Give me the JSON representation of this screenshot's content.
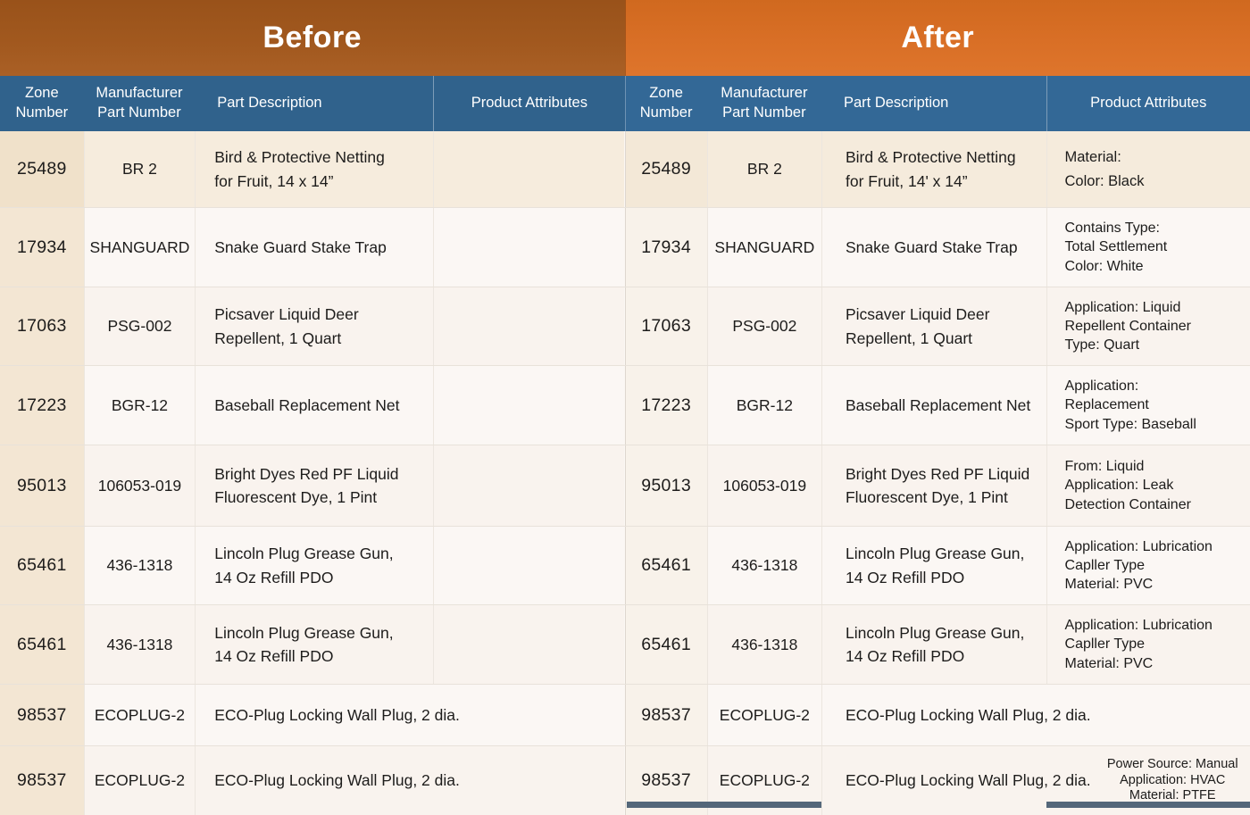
{
  "banners": {
    "before": "Before",
    "after": "After"
  },
  "column_headers": {
    "zone": "Zone\nNumber",
    "manufacturer": "Manufacturer\nPart Number",
    "description": "Part Description",
    "attributes": "Product Attributes"
  },
  "rows": [
    {
      "zone": "25489",
      "mpn": "BR 2",
      "before": {
        "desc": "Bird & Protective Netting\nfor Fruit, 14 x 14”",
        "attr": ""
      },
      "after": {
        "desc": "Bird & Protective Netting\nfor Fruit, 14' x 14”",
        "attr": "Material:\nColor: Black"
      }
    },
    {
      "zone": "17934",
      "mpn": "SHANGUARD",
      "before": {
        "desc": "Snake Guard Stake Trap",
        "attr": ""
      },
      "after": {
        "desc": "Snake Guard Stake Trap",
        "attr": "Contains Type:\nTotal Settlement\nColor: White"
      }
    },
    {
      "zone": "17063",
      "mpn": "PSG-002",
      "before": {
        "desc": "Picsaver Liquid Deer\nRepellent, 1 Quart",
        "attr": ""
      },
      "after": {
        "desc": "Picsaver Liquid Deer\nRepellent, 1 Quart",
        "attr": "Application: Liquid\nRepellent Container\nType: Quart"
      }
    },
    {
      "zone": "17223",
      "mpn": "BGR-12",
      "before": {
        "desc": "Baseball Replacement Net",
        "attr": ""
      },
      "after": {
        "desc": "Baseball Replacement Net",
        "attr": "Application:\nReplacement\nSport Type: Baseball"
      }
    },
    {
      "zone": "95013",
      "mpn": "106053-019",
      "before": {
        "desc": "Bright Dyes Red PF Liquid\nFluorescent Dye, 1 Pint",
        "attr": ""
      },
      "after": {
        "desc": "Bright Dyes Red PF Liquid\nFluorescent Dye, 1 Pint",
        "attr": "From: Liquid\nApplication: Leak\nDetection Container"
      }
    },
    {
      "zone": "65461",
      "mpn": "436-1318",
      "before": {
        "desc": "Lincoln Plug Grease Gun,\n14 Oz Refill PDO",
        "attr": ""
      },
      "after": {
        "desc": "Lincoln Plug Grease Gun,\n14 Oz Refill PDO",
        "attr": "Application: Lubrication\nCapller Type\nMaterial: PVC"
      }
    },
    {
      "zone": "65461",
      "mpn": "436-1318",
      "before": {
        "desc": "Lincoln Plug Grease Gun,\n14 Oz Refill PDO",
        "attr": ""
      },
      "after": {
        "desc": "Lincoln Plug Grease Gun,\n14 Oz Refill PDO",
        "attr": "Application: Lubrication\nCapller Type\nMaterial: PVC"
      }
    },
    {
      "zone": "98537",
      "mpn": "ECOPLUG-2",
      "merged": true,
      "before": {
        "desc": "ECO-Plug Locking Wall Plug, 2 dia.",
        "attr": ""
      },
      "after": {
        "desc": "ECO-Plug Locking Wall Plug, 2 dia.",
        "attr": ""
      }
    },
    {
      "zone": "98537",
      "mpn": "ECOPLUG-2",
      "merged": true,
      "attr_small": true,
      "before": {
        "desc": "ECO-Plug Locking Wall Plug, 2 dia.",
        "attr": ""
      },
      "after": {
        "desc": "ECO-Plug Locking Wall Plug, 2 dia.",
        "attr": "Power Source: Manual\nApplication: HVAC\nMaterial: PTFE"
      }
    }
  ],
  "colors": {
    "before_orange": "#a2591f",
    "before_orange_dark": "#99521a",
    "before_orange_light": "#aa6026",
    "after_orange": "#d96f26",
    "after_orange_dark": "#d0691f",
    "after_orange_light": "#de752c",
    "header_blue_before": "#30628c",
    "header_blue_after": "#336896",
    "row_beige": "#f6ecdd",
    "row_beige_after": "#f5ebdc",
    "zone_beige": "#f3e6d3",
    "zone_beige_dark": "#f0e1ca",
    "zone_beige_light": "#f8f2ea",
    "zone_beige_after": "#f3e8d7",
    "row_light": "#fbf7f4",
    "row_light_warm": "#f9f3ee",
    "grid_line": "#e8e2da",
    "grid_line_v": "#ece6df",
    "text_color": "#1d1c1b",
    "strip_color": "#54677a"
  }
}
